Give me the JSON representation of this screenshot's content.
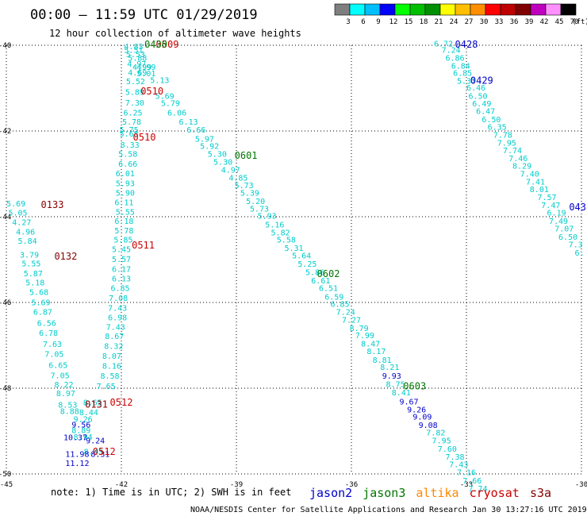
{
  "chart_data": {
    "type": "scatter",
    "title": "00:00 – 11:59 UTC 01/29/2019",
    "subtitle": "12 hour collection of altimeter wave heights",
    "note": "note: 1) Time is in UTC; 2) SWH is in feet",
    "credit": "NOAA/NESDIS Center for Satellite Applications and Research   Jan 30 13:27:16 UTC 2019",
    "xlim": [
      -45,
      -30
    ],
    "ylim": [
      -50,
      -40
    ],
    "x_ticks": [
      "-45",
      "-42",
      "-39",
      "-36",
      "-33",
      "-30"
    ],
    "y_ticks": [
      "-40",
      "-42",
      "-44",
      "-46",
      "-48",
      "-50"
    ],
    "grid": "dotted",
    "colorbar": {
      "labels": [
        "3",
        "6",
        "9",
        "12",
        "15",
        "18",
        "21",
        "24",
        "27",
        "30",
        "33",
        "36",
        "39",
        "42",
        "45",
        "70",
        "(ft)"
      ],
      "colors": [
        "#7f7f7f",
        "#00ffff",
        "#00bfff",
        "#0000ff",
        "#00ff00",
        "#00bf00",
        "#008f00",
        "#ffff00",
        "#ffbf00",
        "#ff8f00",
        "#ff0000",
        "#bf0000",
        "#7f0000",
        "#bf00bf",
        "#ff8fff",
        "#000000"
      ]
    },
    "satellites": [
      {
        "name": "jason2",
        "color": "#0000cc"
      },
      {
        "name": "jason3",
        "color": "#007700"
      },
      {
        "name": "altika",
        "color": "#ff8800"
      },
      {
        "name": "cryosat",
        "color": "#cc0000"
      },
      {
        "name": "s3a",
        "color": "#880000"
      }
    ],
    "tracks": [
      {
        "name": "track-a",
        "color": "#00cccc",
        "points": [
          {
            "x": -44.75,
            "y": -43.7,
            "v": "5.69"
          },
          {
            "x": -44.7,
            "y": -43.92,
            "v": "5.05"
          },
          {
            "x": -44.6,
            "y": -44.14,
            "v": "4.27"
          },
          {
            "x": -44.5,
            "y": -44.36,
            "v": "4.96"
          },
          {
            "x": -44.45,
            "y": -44.57,
            "v": "5.84"
          },
          {
            "x": -44.4,
            "y": -44.9,
            "v": "3.79"
          },
          {
            "x": -44.35,
            "y": -45.1,
            "v": "5.55"
          },
          {
            "x": -44.3,
            "y": -45.33,
            "v": "5.87"
          },
          {
            "x": -44.25,
            "y": -45.55,
            "v": "5.18"
          },
          {
            "x": -44.15,
            "y": -45.77,
            "v": "5.68"
          },
          {
            "x": -44.1,
            "y": -46.01,
            "v": "5.69"
          },
          {
            "x": -44.05,
            "y": -46.23,
            "v": "6.87"
          },
          {
            "x": -43.95,
            "y": -46.49,
            "v": "6.56"
          },
          {
            "x": -43.9,
            "y": -46.72,
            "v": "6.78"
          },
          {
            "x": -43.8,
            "y": -46.98,
            "v": "7.63"
          },
          {
            "x": -43.75,
            "y": -47.21,
            "v": "7.05"
          },
          {
            "x": -43.65,
            "y": -47.47,
            "v": "6.65"
          },
          {
            "x": -43.6,
            "y": -47.71,
            "v": "7.05"
          },
          {
            "x": -43.5,
            "y": -47.93,
            "v": "8.22"
          },
          {
            "x": -43.45,
            "y": -48.13,
            "v": "8.97"
          },
          {
            "x": -43.4,
            "y": -48.4,
            "v": "8.53"
          },
          {
            "x": -43.35,
            "y": -48.55,
            "v": "8.88"
          }
        ]
      },
      {
        "name": "track-b",
        "color": "#00cccc",
        "points": [
          {
            "x": -42.75,
            "y": -48.34,
            "v": "8.65"
          },
          {
            "x": -42.85,
            "y": -48.57,
            "v": "8.44"
          },
          {
            "x": -43.0,
            "y": -48.73,
            "v": "9.26"
          },
          {
            "x": -43.05,
            "y": -48.99,
            "v": "8.89"
          },
          {
            "x": -43.0,
            "y": -49.15,
            "v": "8.94"
          },
          {
            "x": -42.73,
            "y": -49.49,
            "v": "8.43"
          }
        ]
      },
      {
        "name": "track-c",
        "color": "#0000cc",
        "points": [
          {
            "x": -43.05,
            "y": -48.86,
            "v": "9.56"
          },
          {
            "x": -43.2,
            "y": -49.16,
            "v": "10.37"
          },
          {
            "x": -42.68,
            "y": -49.23,
            "v": "9.24"
          },
          {
            "x": -42.55,
            "y": -49.55,
            "v": "8.31"
          },
          {
            "x": -43.15,
            "y": -49.55,
            "v": "11.98"
          },
          {
            "x": -43.15,
            "y": -49.76,
            "v": "11.12"
          }
        ]
      },
      {
        "name": "track-d",
        "color": "#00cccc",
        "points": [
          {
            "x": -41.68,
            "y": -40.04,
            "v": "4.83"
          },
          {
            "x": -41.68,
            "y": -40.12,
            "v": "5.51"
          },
          {
            "x": -41.63,
            "y": -40.22,
            "v": "5.53"
          },
          {
            "x": -41.58,
            "y": -40.31,
            "v": "5.88"
          },
          {
            "x": -41.6,
            "y": -40.44,
            "v": "4.97"
          },
          {
            "x": -41.46,
            "y": -40.52,
            "v": "4.99"
          },
          {
            "x": -41.58,
            "y": -40.65,
            "v": "4.69"
          },
          {
            "x": -41.35,
            "y": -40.67,
            "v": "5.01"
          },
          {
            "x": -41.63,
            "y": -40.85,
            "v": "5.52"
          },
          {
            "x": -41.65,
            "y": -41.1,
            "v": "5.89"
          },
          {
            "x": -41.65,
            "y": -41.35,
            "v": "7.30"
          },
          {
            "x": -41.7,
            "y": -41.58,
            "v": "6.25"
          },
          {
            "x": -41.73,
            "y": -41.8,
            "v": "5.78"
          },
          {
            "x": -41.8,
            "y": -41.98,
            "v": "5.75"
          },
          {
            "x": -41.8,
            "y": -42.07,
            "v": "5.68"
          },
          {
            "x": -41.78,
            "y": -42.33,
            "v": "8.33"
          },
          {
            "x": -41.83,
            "y": -42.55,
            "v": "5.58"
          },
          {
            "x": -41.83,
            "y": -42.78,
            "v": "6.66"
          },
          {
            "x": -41.9,
            "y": -43.0,
            "v": "6.01"
          },
          {
            "x": -41.9,
            "y": -43.23,
            "v": "5.93"
          },
          {
            "x": -41.9,
            "y": -43.45,
            "v": "5.90"
          },
          {
            "x": -41.93,
            "y": -43.68,
            "v": "6.11"
          },
          {
            "x": -41.9,
            "y": -43.9,
            "v": "5.55"
          },
          {
            "x": -41.93,
            "y": -44.11,
            "v": "6.18"
          },
          {
            "x": -41.93,
            "y": -44.33,
            "v": "5.78"
          },
          {
            "x": -41.95,
            "y": -44.55,
            "v": "5.85"
          },
          {
            "x": -42.0,
            "y": -44.77,
            "v": "5.45"
          },
          {
            "x": -42.0,
            "y": -45.0,
            "v": "5.57"
          },
          {
            "x": -42.0,
            "y": -45.23,
            "v": "6.17"
          },
          {
            "x": -42.0,
            "y": -45.45,
            "v": "6.13"
          },
          {
            "x": -42.03,
            "y": -45.68,
            "v": "6.85"
          },
          {
            "x": -42.08,
            "y": -45.91,
            "v": "7.08"
          },
          {
            "x": -42.1,
            "y": -46.14,
            "v": "7.43"
          },
          {
            "x": -42.1,
            "y": -46.36,
            "v": "6.98"
          },
          {
            "x": -42.15,
            "y": -46.58,
            "v": "7.43"
          },
          {
            "x": -42.18,
            "y": -46.8,
            "v": "8.67"
          },
          {
            "x": -42.2,
            "y": -47.03,
            "v": "8.32"
          },
          {
            "x": -42.25,
            "y": -47.26,
            "v": "8.07"
          },
          {
            "x": -42.25,
            "y": -47.49,
            "v": "8.16"
          },
          {
            "x": -42.3,
            "y": -47.72,
            "v": "8.58"
          },
          {
            "x": -42.4,
            "y": -47.96,
            "v": "7.65"
          }
        ]
      },
      {
        "name": "track-e",
        "color": "#00cccc",
        "points": [
          {
            "x": -41.35,
            "y": -40.52,
            "v": "4.99"
          },
          {
            "x": -41.0,
            "y": -40.82,
            "v": "5.13"
          },
          {
            "x": -40.87,
            "y": -41.19,
            "v": "5.69"
          },
          {
            "x": -40.72,
            "y": -41.36,
            "v": "5.79"
          },
          {
            "x": -40.55,
            "y": -41.58,
            "v": "6.06"
          },
          {
            "x": -40.25,
            "y": -41.8,
            "v": "6.13"
          },
          {
            "x": -40.05,
            "y": -41.98,
            "v": "6.66"
          },
          {
            "x": -39.83,
            "y": -42.19,
            "v": "5.97"
          },
          {
            "x": -39.7,
            "y": -42.36,
            "v": "5.92"
          },
          {
            "x": -39.5,
            "y": -42.55,
            "v": "5.30"
          },
          {
            "x": -39.35,
            "y": -42.73,
            "v": "5.30"
          },
          {
            "x": -39.15,
            "y": -42.92,
            "v": "4.97"
          },
          {
            "x": -38.95,
            "y": -43.1,
            "v": "4.85"
          },
          {
            "x": -38.8,
            "y": -43.28,
            "v": "5.73"
          },
          {
            "x": -38.65,
            "y": -43.45,
            "v": "5.39"
          },
          {
            "x": -38.5,
            "y": -43.65,
            "v": "5.20"
          },
          {
            "x": -38.4,
            "y": -43.82,
            "v": "5.73"
          },
          {
            "x": -38.2,
            "y": -43.99,
            "v": "5.93"
          },
          {
            "x": -38.0,
            "y": -44.19,
            "v": "5.16"
          },
          {
            "x": -37.85,
            "y": -44.38,
            "v": "5.82"
          },
          {
            "x": -37.7,
            "y": -44.55,
            "v": "5.58"
          },
          {
            "x": -37.5,
            "y": -44.74,
            "v": "5.31"
          },
          {
            "x": -37.3,
            "y": -44.92,
            "v": "5.64"
          },
          {
            "x": -37.15,
            "y": -45.11,
            "v": "5.25"
          },
          {
            "x": -36.95,
            "y": -45.31,
            "v": "5.86"
          },
          {
            "x": -36.8,
            "y": -45.5,
            "v": "6.61"
          },
          {
            "x": -36.6,
            "y": -45.68,
            "v": "6.51"
          },
          {
            "x": -36.45,
            "y": -45.88,
            "v": "6.59"
          },
          {
            "x": -36.3,
            "y": -46.05,
            "v": "6.85"
          },
          {
            "x": -36.15,
            "y": -46.23,
            "v": "7.24"
          },
          {
            "x": -36.0,
            "y": -46.42,
            "v": "7.27"
          },
          {
            "x": -35.8,
            "y": -46.61,
            "v": "8.79"
          },
          {
            "x": -35.65,
            "y": -46.78,
            "v": "7.99"
          },
          {
            "x": -35.5,
            "y": -46.97,
            "v": "8.47"
          },
          {
            "x": -35.35,
            "y": -47.15,
            "v": "8.17"
          },
          {
            "x": -35.2,
            "y": -47.35,
            "v": "8.81"
          },
          {
            "x": -35.0,
            "y": -47.52,
            "v": "8.21"
          },
          {
            "x": -34.85,
            "y": -47.92,
            "v": "8.75"
          },
          {
            "x": -34.7,
            "y": -48.11,
            "v": "8.41"
          }
        ]
      },
      {
        "name": "track-f",
        "color": "#0000cc",
        "points": [
          {
            "x": -34.95,
            "y": -47.72,
            "v": "9.93"
          },
          {
            "x": -34.5,
            "y": -48.32,
            "v": "9.67"
          },
          {
            "x": -34.3,
            "y": -48.51,
            "v": "9.26"
          },
          {
            "x": -34.15,
            "y": -48.68,
            "v": "9.09"
          },
          {
            "x": -34.0,
            "y": -48.87,
            "v": "9.08"
          }
        ]
      },
      {
        "name": "track-g",
        "color": "#00cccc",
        "points": [
          {
            "x": -33.8,
            "y": -49.05,
            "v": "7.82"
          },
          {
            "x": -33.65,
            "y": -49.23,
            "v": "7.95"
          },
          {
            "x": -33.5,
            "y": -49.43,
            "v": "7.60"
          },
          {
            "x": -33.3,
            "y": -49.61,
            "v": "7.38"
          },
          {
            "x": -33.2,
            "y": -49.79,
            "v": "7.43"
          },
          {
            "x": -33.0,
            "y": -49.97,
            "v": "7.16"
          },
          {
            "x": -32.85,
            "y": -50.17,
            "v": "7.66"
          },
          {
            "x": -32.7,
            "y": -50.35,
            "v": "7.74"
          }
        ]
      },
      {
        "name": "track-h",
        "color": "#00cccc",
        "points": [
          {
            "x": -33.6,
            "y": -39.97,
            "v": "6.72"
          },
          {
            "x": -33.4,
            "y": -40.12,
            "v": "7.24"
          },
          {
            "x": -33.3,
            "y": -40.31,
            "v": "6.86"
          },
          {
            "x": -33.15,
            "y": -40.49,
            "v": "6.84"
          },
          {
            "x": -33.1,
            "y": -40.66,
            "v": "6.85"
          },
          {
            "x": -33.0,
            "y": -40.84,
            "v": "5.37"
          },
          {
            "x": -32.75,
            "y": -41.0,
            "v": "6.46"
          },
          {
            "x": -32.7,
            "y": -41.19,
            "v": "6.50"
          },
          {
            "x": -32.6,
            "y": -41.37,
            "v": "6.49"
          },
          {
            "x": -32.5,
            "y": -41.55,
            "v": "6.47"
          },
          {
            "x": -32.35,
            "y": -41.74,
            "v": "6.50"
          },
          {
            "x": -32.2,
            "y": -41.92,
            "v": "6.35"
          },
          {
            "x": -32.05,
            "y": -42.1,
            "v": "7.78"
          },
          {
            "x": -31.95,
            "y": -42.29,
            "v": "7.95"
          },
          {
            "x": -31.8,
            "y": -42.46,
            "v": "7.74"
          },
          {
            "x": -31.65,
            "y": -42.65,
            "v": "7.46"
          },
          {
            "x": -31.55,
            "y": -42.82,
            "v": "8.29"
          },
          {
            "x": -31.35,
            "y": -43.01,
            "v": "7.40"
          },
          {
            "x": -31.2,
            "y": -43.19,
            "v": "7.41"
          },
          {
            "x": -31.1,
            "y": -43.37,
            "v": "8.01"
          },
          {
            "x": -30.9,
            "y": -43.56,
            "v": "7.57"
          },
          {
            "x": -30.8,
            "y": -43.74,
            "v": "7.47"
          },
          {
            "x": -30.65,
            "y": -43.92,
            "v": "6.19"
          },
          {
            "x": -30.6,
            "y": -44.11,
            "v": "7.49"
          },
          {
            "x": -30.45,
            "y": -44.29,
            "v": "7.07"
          },
          {
            "x": -30.35,
            "y": -44.48,
            "v": "6.50"
          },
          {
            "x": -30.15,
            "y": -44.66,
            "v": "7.3"
          },
          {
            "x": -30.05,
            "y": -44.85,
            "v": "6."
          }
        ]
      }
    ],
    "time_labels": [
      {
        "x": -40.8,
        "y": -39.98,
        "v": "0509",
        "color": "#cc0000"
      },
      {
        "x": -41.1,
        "y": -39.98,
        "v": "0430",
        "color": "#007700"
      },
      {
        "x": -41.2,
        "y": -41.07,
        "v": "0510",
        "color": "#cc0000"
      },
      {
        "x": -41.4,
        "y": -42.15,
        "v": "0510",
        "color": "#cc0000"
      },
      {
        "x": -38.75,
        "y": -42.57,
        "v": "0601",
        "color": "#007700"
      },
      {
        "x": -43.8,
        "y": -43.72,
        "v": "0133",
        "color": "#880000"
      },
      {
        "x": -43.45,
        "y": -44.93,
        "v": "0132",
        "color": "#880000"
      },
      {
        "x": -41.43,
        "y": -44.67,
        "v": "0511",
        "color": "#cc0000"
      },
      {
        "x": -36.6,
        "y": -45.33,
        "v": "0602",
        "color": "#007700"
      },
      {
        "x": -34.35,
        "y": -47.95,
        "v": "0603",
        "color": "#007700"
      },
      {
        "x": -42.0,
        "y": -48.33,
        "v": "0512",
        "color": "#cc0000"
      },
      {
        "x": -42.65,
        "y": -48.38,
        "v": "0131",
        "color": "#880000"
      },
      {
        "x": -42.45,
        "y": -49.48,
        "v": "0512",
        "color": "#cc0000"
      },
      {
        "x": -33.0,
        "y": -39.98,
        "v": "0428",
        "color": "#0000cc"
      },
      {
        "x": -32.6,
        "y": -40.82,
        "v": "0429",
        "color": "#0000cc"
      },
      {
        "x": -30.1,
        "y": -43.78,
        "v": "043",
        "color": "#0000cc"
      }
    ]
  }
}
